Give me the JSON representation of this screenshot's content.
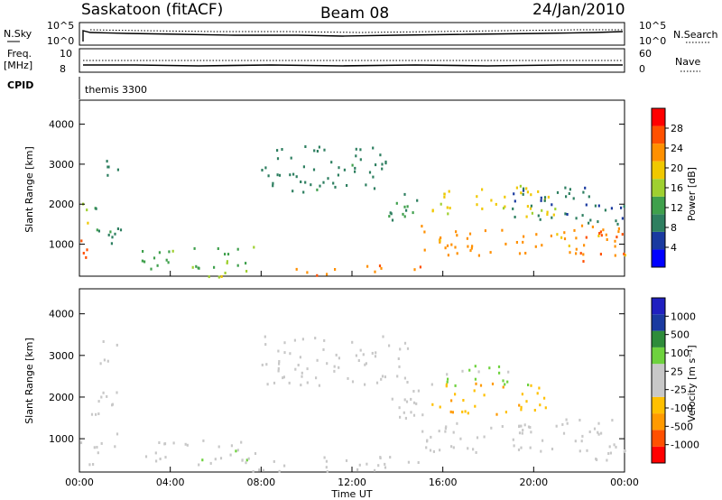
{
  "header": {
    "station": "Saskatoon (fitACF)",
    "beam": "Beam 08",
    "date": "24/Jan/2010"
  },
  "strip_labels": {
    "nsky": "N.Sky",
    "nsky_ticks": [
      "10^5",
      "10^0"
    ],
    "nsearch": "N.Search",
    "nsearch_ticks": [
      "10^5",
      "10^0"
    ],
    "freq": "Freq.",
    "freq_unit": "[MHz]",
    "freq_ticks": [
      "10",
      "8"
    ],
    "nave": "Nave",
    "nave_ticks": [
      "60",
      "0"
    ],
    "cpid": "CPID",
    "cpid_value": "themis 3300"
  },
  "colors": {
    "power_scale": [
      "#0000ff",
      "#1a3aa0",
      "#2e7f60",
      "#3fa04c",
      "#9fd030",
      "#f0c800",
      "#ff9000",
      "#ff5000",
      "#ff0000"
    ],
    "velocity_scale": [
      "#ff0000",
      "#ff5000",
      "#ff9a00",
      "#ffc000",
      "#c8c8c8",
      "#c8c8c8",
      "#6ed23e",
      "#2e8c3a",
      "#1a3aa0",
      "#2020c0"
    ]
  },
  "chart_data": [
    {
      "type": "heatmap",
      "name": "power",
      "ylabel": "Slant Range [km]",
      "yticks": [
        "1000",
        "2000",
        "3000",
        "4000"
      ],
      "ylim": [
        200,
        4600
      ],
      "xlim": [
        0,
        24
      ],
      "colorbar": {
        "label": "Power [dB]",
        "ticks": [
          "4",
          "8",
          "12",
          "16",
          "20",
          "24",
          "28"
        ],
        "range": [
          0,
          32
        ]
      },
      "blobs": [
        {
          "t0": 0.0,
          "t1": 0.6,
          "r0": 500,
          "r1": 1200,
          "v": 27
        },
        {
          "t0": 0.0,
          "t1": 0.5,
          "r0": 1500,
          "r1": 2300,
          "v": 18
        },
        {
          "t0": 0.6,
          "t1": 1.8,
          "r0": 900,
          "r1": 2000,
          "v": 10
        },
        {
          "t0": 0.8,
          "t1": 1.7,
          "r0": 2700,
          "r1": 3300,
          "v": 9
        },
        {
          "t0": 2.7,
          "t1": 7.8,
          "r0": 400,
          "r1": 1000,
          "v": 13
        },
        {
          "t0": 5.5,
          "t1": 7.5,
          "r0": 200,
          "r1": 500,
          "v": 17
        },
        {
          "t0": 8.0,
          "t1": 13.5,
          "r0": 2300,
          "r1": 3500,
          "v": 9
        },
        {
          "t0": 9.5,
          "t1": 15.0,
          "r0": 250,
          "r1": 500,
          "v": 24
        },
        {
          "t0": 13.5,
          "t1": 15.2,
          "r0": 1500,
          "r1": 2400,
          "v": 11
        },
        {
          "t0": 15.0,
          "t1": 24.0,
          "r0": 750,
          "r1": 1500,
          "v": 23
        },
        {
          "t0": 15.5,
          "t1": 21.0,
          "r0": 1700,
          "r1": 2500,
          "v": 19
        },
        {
          "t0": 19.0,
          "t1": 24.0,
          "r0": 1500,
          "r1": 2500,
          "v": 8
        },
        {
          "t0": 22.0,
          "t1": 24.0,
          "r0": 600,
          "r1": 1400,
          "v": 26
        }
      ]
    },
    {
      "type": "heatmap",
      "name": "velocity",
      "ylabel": "Slant Range [km]",
      "yticks": [
        "1000",
        "2000",
        "3000",
        "4000"
      ],
      "ylim": [
        200,
        4600
      ],
      "xlim": [
        0,
        24
      ],
      "xticks": [
        "00:00",
        "04:00",
        "08:00",
        "12:00",
        "16:00",
        "20:00",
        "00:00"
      ],
      "xlabel": "Time UT",
      "colorbar": {
        "label": "Velocity [m s⁻¹]",
        "ticks": [
          "-1000",
          "-500",
          "-100",
          "-25",
          "25",
          "100",
          "500",
          "1000"
        ],
        "range": [
          -1200,
          1200
        ]
      },
      "blobs": [
        {
          "t0": 0.0,
          "t1": 0.8,
          "r0": 400,
          "r1": 1200,
          "v": 120
        },
        {
          "t0": 0.5,
          "t1": 1.7,
          "r0": 800,
          "r1": 2200,
          "v": 0
        },
        {
          "t0": 0.8,
          "t1": 1.7,
          "r0": 2800,
          "r1": 3400,
          "v": 0
        },
        {
          "t0": 2.8,
          "t1": 7.8,
          "r0": 400,
          "r1": 1000,
          "v": 120
        },
        {
          "t0": 7.0,
          "t1": 15.0,
          "r0": 200,
          "r1": 600,
          "v": -60
        },
        {
          "t0": 8.0,
          "t1": 14.5,
          "r0": 2300,
          "r1": 3500,
          "v": 0
        },
        {
          "t0": 13.5,
          "t1": 15.5,
          "r0": 1400,
          "r1": 2400,
          "v": 0
        },
        {
          "t0": 15.0,
          "t1": 24.0,
          "r0": 700,
          "r1": 1500,
          "v": 0
        },
        {
          "t0": 15.5,
          "t1": 20.5,
          "r0": 1600,
          "r1": 2400,
          "v": -450
        },
        {
          "t0": 16.0,
          "t1": 20.0,
          "r0": 2300,
          "r1": 2800,
          "v": 300
        },
        {
          "t0": 22.5,
          "t1": 24.0,
          "r0": 500,
          "r1": 1300,
          "v": 120
        }
      ]
    }
  ]
}
